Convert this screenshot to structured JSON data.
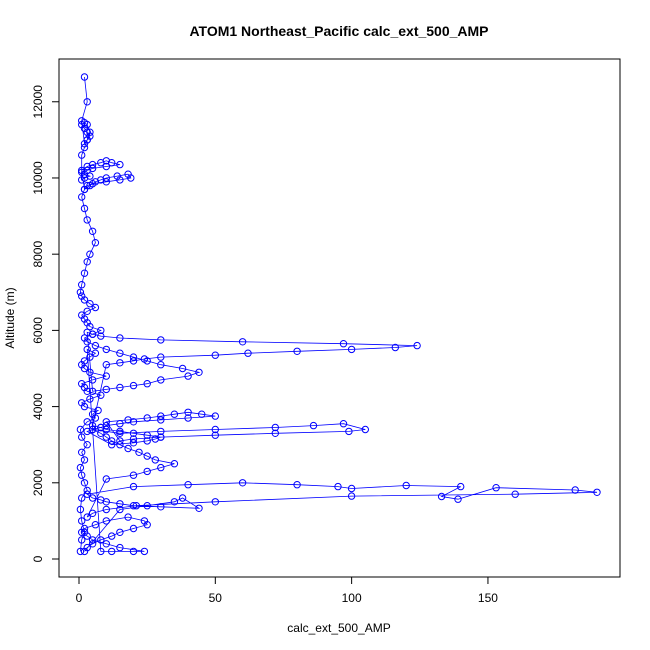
{
  "chart_data": {
    "type": "scatter",
    "title": "ATOM1 Northeast_Pacific calc_ext_500_AMP",
    "xlabel": "calc_ext_500_AMP",
    "ylabel": "Altitude (m)",
    "xlim": [
      0,
      190
    ],
    "ylim": [
      0,
      12650
    ],
    "xticks": [
      "0",
      "50",
      "100",
      "150"
    ],
    "xtick_values": [
      0,
      50,
      100,
      150
    ],
    "yticks": [
      "0",
      "2000",
      "4000",
      "6000",
      "8000",
      "10000",
      "12000"
    ],
    "ytick_values": [
      0,
      2000,
      4000,
      6000,
      8000,
      10000,
      12000
    ],
    "grid": false,
    "legend": "none",
    "series_color": "#0000ff",
    "marker": "open-circle",
    "connected": true,
    "series": [
      {
        "x": [
          0.5,
          1,
          2,
          1,
          0.5,
          1,
          3,
          2,
          1,
          0.5,
          2,
          1,
          3,
          1,
          0.5,
          3,
          6,
          5,
          7,
          2,
          1,
          4,
          8,
          3,
          2,
          1,
          5,
          10,
          4,
          2,
          1,
          2,
          4,
          6,
          3,
          8,
          12,
          20,
          24,
          15,
          10,
          5,
          3,
          1,
          2,
          6,
          10,
          18,
          24,
          25,
          20,
          15,
          12,
          8,
          5,
          3,
          2,
          15,
          25,
          35,
          38,
          44,
          30,
          20,
          15,
          10,
          8,
          5,
          3,
          20,
          40,
          60,
          80,
          95,
          100,
          120,
          140,
          133,
          139,
          153,
          182,
          190,
          160,
          100,
          50,
          21,
          10,
          5,
          3,
          10,
          20,
          25,
          30,
          35,
          28,
          25,
          22,
          18,
          15,
          12,
          10,
          8,
          5,
          15,
          30,
          50,
          72,
          86,
          97,
          105,
          99,
          72,
          50,
          30,
          20,
          15,
          10,
          18,
          25,
          30,
          35,
          40,
          45,
          50,
          40,
          30,
          20,
          15,
          10,
          8,
          5,
          3,
          12,
          20,
          25,
          28,
          30,
          25,
          20,
          15,
          10,
          8,
          5,
          10,
          15,
          20,
          24,
          30,
          50,
          62,
          80,
          100,
          116,
          124,
          97,
          60,
          30,
          15,
          8,
          5,
          3,
          5,
          10,
          15,
          20,
          25,
          30,
          40,
          44,
          38,
          30,
          25,
          20,
          15,
          10,
          6,
          3,
          2,
          5,
          8,
          4,
          3,
          2,
          1,
          3,
          6,
          4,
          2,
          1,
          0.5,
          1,
          2,
          3,
          4,
          6,
          5,
          3,
          2,
          1,
          2,
          4,
          6,
          8,
          10,
          14,
          18,
          19,
          15,
          10,
          5,
          3,
          2,
          1,
          3,
          5,
          8,
          10,
          12,
          15,
          10,
          5,
          3,
          1,
          2,
          4,
          2,
          1,
          1,
          2,
          3,
          4,
          3,
          2,
          1,
          2,
          3,
          4,
          3,
          2,
          1,
          3,
          2
        ],
        "y": [
          200,
          500,
          700,
          1000,
          1300,
          1600,
          1800,
          2000,
          2200,
          2400,
          2600,
          2800,
          3000,
          3200,
          3400,
          3600,
          3700,
          3800,
          3900,
          4000,
          4100,
          4200,
          4300,
          4400,
          4500,
          4600,
          4700,
          4800,
          4900,
          5000,
          5100,
          5200,
          5300,
          5400,
          5500,
          200,
          200,
          200,
          200,
          300,
          400,
          500,
          600,
          700,
          800,
          900,
          1000,
          1100,
          1000,
          900,
          800,
          700,
          600,
          500,
          400,
          300,
          200,
          1300,
          1400,
          1500,
          1600,
          1330,
          1370,
          1400,
          1450,
          1500,
          1550,
          1600,
          1700,
          1900,
          1950,
          2000,
          1950,
          1900,
          1850,
          1930,
          1900,
          1640,
          1570,
          1870,
          1810,
          1750,
          1700,
          1650,
          1500,
          1400,
          1300,
          1200,
          1100,
          2100,
          2200,
          2300,
          2400,
          2500,
          2600,
          2700,
          2800,
          2900,
          3000,
          3100,
          3200,
          3300,
          3400,
          3300,
          3350,
          3400,
          3450,
          3500,
          3550,
          3400,
          3350,
          3300,
          3250,
          3200,
          3150,
          3100,
          3600,
          3650,
          3700,
          3750,
          3800,
          3850,
          3800,
          3750,
          3700,
          3650,
          3600,
          3550,
          3500,
          3450,
          3400,
          3350,
          3000,
          3050,
          3100,
          3150,
          3200,
          3250,
          3300,
          3350,
          3400,
          3450,
          3500,
          5100,
          5150,
          5200,
          5250,
          5300,
          5350,
          5400,
          5450,
          5500,
          5550,
          5600,
          5650,
          5700,
          5750,
          5800,
          5850,
          5900,
          5950,
          4400,
          4450,
          4500,
          4550,
          4600,
          4700,
          4800,
          4900,
          5000,
          5100,
          5200,
          5300,
          5400,
          5500,
          5600,
          5700,
          5800,
          5900,
          6000,
          6100,
          6200,
          6300,
          6400,
          6500,
          6600,
          6700,
          6800,
          6900,
          7000,
          7200,
          7500,
          7800,
          8000,
          8300,
          8600,
          8900,
          9200,
          9500,
          9700,
          9800,
          9900,
          9950,
          10000,
          10050,
          10100,
          10000,
          9950,
          9900,
          9850,
          9800,
          9700,
          10200,
          10300,
          10350,
          10400,
          10450,
          10400,
          10350,
          10300,
          10250,
          10200,
          10150,
          10100,
          10050,
          10000,
          9950,
          10600,
          10800,
          11000,
          11200,
          11400,
          11450,
          11400,
          11300,
          11200,
          11100,
          11000,
          10900,
          11500,
          12000,
          12650
        ]
      }
    ]
  }
}
